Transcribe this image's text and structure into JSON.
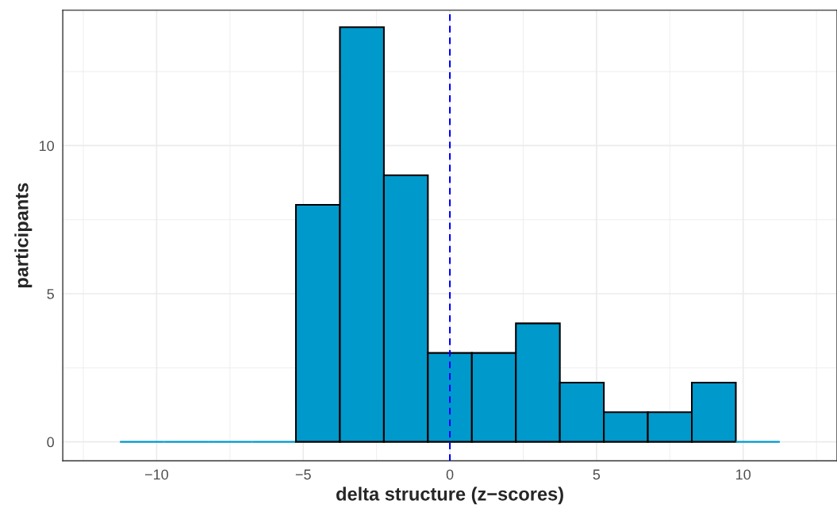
{
  "chart_data": {
    "type": "histogram",
    "xlabel": "delta structure (z−scores)",
    "ylabel": "participants",
    "bins": [
      -11.25,
      -9.75,
      -8.25,
      -6.75,
      -5.25,
      -3.75,
      -2.25,
      -0.75,
      0.75,
      2.25,
      3.75,
      5.25,
      6.75,
      8.25,
      9.75,
      11.25
    ],
    "values": [
      0,
      0,
      0,
      0,
      8,
      14,
      9,
      3,
      3,
      4,
      2,
      1,
      1,
      2,
      0
    ],
    "color": "#0099cc",
    "xlim": [
      -13.2,
      13.2
    ],
    "xticks": [
      {
        "value": -10,
        "label": "−10"
      },
      {
        "value": -5,
        "label": "−5"
      },
      0,
      5,
      10
    ],
    "ylim": [
      -0.64,
      14.57
    ],
    "yticks": [
      0,
      5,
      10
    ],
    "grid": true,
    "ref_lines": [
      {
        "axis": "x",
        "value": 0,
        "color": "#0000ff",
        "line_style": "dashed"
      }
    ]
  }
}
